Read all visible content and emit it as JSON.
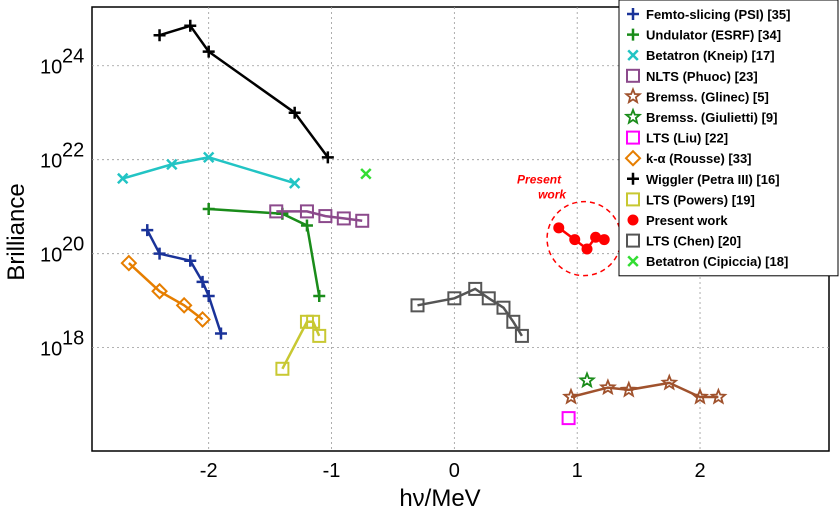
{
  "chart_data": {
    "type": "scatter",
    "xlabel": "hν/MeV",
    "ylabel": "Brilliance",
    "xlim": [
      -2.95,
      3.05
    ],
    "ylim": [
      15.8,
      25.25
    ],
    "y_log_scale": true,
    "grid": true,
    "legend_position": "top-right",
    "x_ticks": [
      {
        "value": -2,
        "label": "-2"
      },
      {
        "value": -1,
        "label": "-1"
      },
      {
        "value": 0,
        "label": "0"
      },
      {
        "value": 1,
        "label": "1"
      },
      {
        "value": 2,
        "label": "2"
      }
    ],
    "y_ticks": [
      {
        "value": 18,
        "base": "10",
        "exp": "18"
      },
      {
        "value": 20,
        "base": "10",
        "exp": "20"
      },
      {
        "value": 22,
        "base": "10",
        "exp": "22"
      },
      {
        "value": 24,
        "base": "10",
        "exp": "24"
      }
    ],
    "annotation": {
      "lines": [
        "Present",
        "work"
      ],
      "color": "#ff0000"
    },
    "series": [
      {
        "name": "Femto-slicing (PSI) [35]",
        "color": "#1a3399",
        "marker": "plus",
        "x": [
          -2.5,
          -2.4,
          -2.15,
          -2.05,
          -2.0,
          -1.9
        ],
        "y": [
          20.5,
          20.0,
          19.85,
          19.4,
          19.1,
          18.3
        ]
      },
      {
        "name": "Undulator (ESRF) [34]",
        "color": "#1a8c1a",
        "marker": "plus",
        "x": [
          -2.0,
          -1.4,
          -1.2,
          -1.1
        ],
        "y": [
          20.95,
          20.85,
          20.6,
          19.1
        ]
      },
      {
        "name": "Betatron (Kneip) [17]",
        "color": "#22c4c4",
        "marker": "x",
        "x": [
          -2.7,
          -2.3,
          -2.0,
          -1.3
        ],
        "y": [
          21.6,
          21.9,
          22.05,
          21.5
        ]
      },
      {
        "name": "NLTS (Phuoc) [23]",
        "color": "#8c4a8c",
        "marker": "square",
        "x": [
          -1.45,
          -1.2,
          -1.05,
          -0.9,
          -0.75
        ],
        "y": [
          20.9,
          20.9,
          20.8,
          20.75,
          20.7
        ]
      },
      {
        "name": "Bremss. (Glinec) [5]",
        "color": "#a0522d",
        "marker": "star",
        "x": [
          0.95,
          1.25,
          1.42,
          1.75,
          2.0,
          2.15
        ],
        "y": [
          16.95,
          17.15,
          17.1,
          17.25,
          16.95,
          16.95
        ]
      },
      {
        "name": "Bremss. (Giulietti) [9]",
        "color": "#1a8c1a",
        "marker": "star",
        "x": [
          1.08
        ],
        "y": [
          17.3
        ]
      },
      {
        "name": "LTS (Liu) [22]",
        "color": "#ff00ff",
        "marker": "square",
        "x": [
          0.93
        ],
        "y": [
          16.5
        ]
      },
      {
        "name": "k-α (Rousse) [33]",
        "color": "#e67e00",
        "marker": "diamond",
        "x": [
          -2.65,
          -2.4,
          -2.2,
          -2.05
        ],
        "y": [
          19.8,
          19.2,
          18.9,
          18.6
        ]
      },
      {
        "name": "Wiggler (Petra III) [16]",
        "color": "#000000",
        "marker": "plus",
        "x": [
          -2.4,
          -2.15,
          -2.0,
          -1.3,
          -1.03
        ],
        "y": [
          24.65,
          24.85,
          24.3,
          23.0,
          22.05
        ]
      },
      {
        "name": "LTS (Powers) [19]",
        "color": "#c8c832",
        "marker": "square",
        "x": [
          -1.4,
          -1.2,
          -1.15,
          -1.1
        ],
        "y": [
          17.55,
          18.55,
          18.55,
          18.25
        ]
      },
      {
        "name": "Present work",
        "color": "#ff0000",
        "marker": "circle",
        "x": [
          0.85,
          0.98,
          1.08,
          1.15,
          1.22
        ],
        "y": [
          20.55,
          20.3,
          20.1,
          20.35,
          20.3
        ]
      },
      {
        "name": "LTS (Chen) [20]",
        "color": "#555555",
        "marker": "square",
        "x": [
          -0.3,
          0.0,
          0.17,
          0.28,
          0.4,
          0.48,
          0.55
        ],
        "y": [
          18.9,
          19.05,
          19.25,
          19.05,
          18.85,
          18.55,
          18.25
        ]
      },
      {
        "name": "Betatron (Cipiccia) [18]",
        "color": "#33dd33",
        "marker": "x",
        "x": [
          -0.72
        ],
        "y": [
          21.7
        ]
      }
    ]
  }
}
